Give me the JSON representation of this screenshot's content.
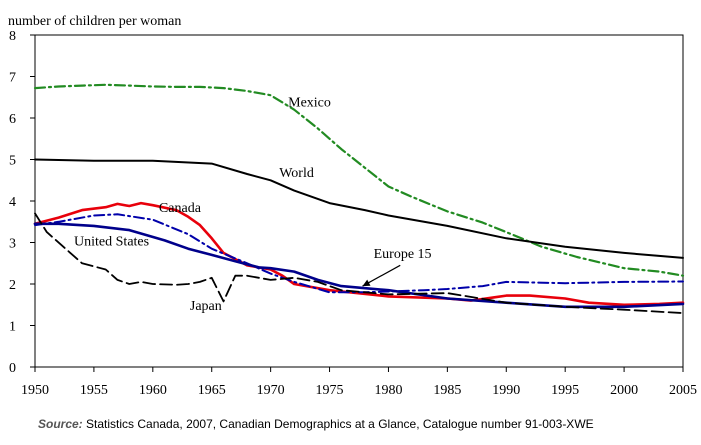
{
  "chart_data": {
    "type": "line",
    "ylabel": "number of children per woman",
    "xlim": [
      1950,
      2005
    ],
    "ylim": [
      0,
      8
    ],
    "x_ticks": [
      1950,
      1955,
      1960,
      1965,
      1970,
      1975,
      1980,
      1985,
      1990,
      1995,
      2000,
      2005
    ],
    "y_ticks": [
      0,
      1,
      2,
      3,
      4,
      5,
      6,
      7,
      8
    ],
    "grid": false,
    "series": [
      {
        "name": "Mexico",
        "color": "#228B22",
        "dash": "dashdot",
        "width": 2.2,
        "points": [
          [
            1950,
            6.72
          ],
          [
            1952,
            6.76
          ],
          [
            1954,
            6.78
          ],
          [
            1956,
            6.8
          ],
          [
            1958,
            6.78
          ],
          [
            1960,
            6.76
          ],
          [
            1962,
            6.75
          ],
          [
            1964,
            6.75
          ],
          [
            1966,
            6.72
          ],
          [
            1968,
            6.65
          ],
          [
            1970,
            6.55
          ],
          [
            1972,
            6.2
          ],
          [
            1974,
            5.75
          ],
          [
            1976,
            5.25
          ],
          [
            1978,
            4.8
          ],
          [
            1980,
            4.35
          ],
          [
            1982,
            4.1
          ],
          [
            1985,
            3.75
          ],
          [
            1988,
            3.48
          ],
          [
            1990,
            3.25
          ],
          [
            1993,
            2.9
          ],
          [
            1996,
            2.65
          ],
          [
            2000,
            2.38
          ],
          [
            2003,
            2.3
          ],
          [
            2005,
            2.2
          ]
        ]
      },
      {
        "name": "World",
        "color": "#000000",
        "dash": "solid",
        "width": 2,
        "points": [
          [
            1950,
            5.0
          ],
          [
            1955,
            4.97
          ],
          [
            1960,
            4.97
          ],
          [
            1965,
            4.9
          ],
          [
            1968,
            4.65
          ],
          [
            1970,
            4.5
          ],
          [
            1972,
            4.25
          ],
          [
            1975,
            3.95
          ],
          [
            1978,
            3.78
          ],
          [
            1980,
            3.65
          ],
          [
            1985,
            3.4
          ],
          [
            1990,
            3.1
          ],
          [
            1995,
            2.9
          ],
          [
            2000,
            2.75
          ],
          [
            2005,
            2.63
          ]
        ]
      },
      {
        "name": "Canada",
        "color": "#e8000b",
        "dash": "solid",
        "width": 2.6,
        "points": [
          [
            1950,
            3.45
          ],
          [
            1952,
            3.6
          ],
          [
            1954,
            3.78
          ],
          [
            1956,
            3.85
          ],
          [
            1957,
            3.93
          ],
          [
            1958,
            3.88
          ],
          [
            1959,
            3.95
          ],
          [
            1960,
            3.9
          ],
          [
            1962,
            3.78
          ],
          [
            1963,
            3.62
          ],
          [
            1964,
            3.42
          ],
          [
            1965,
            3.1
          ],
          [
            1966,
            2.75
          ],
          [
            1968,
            2.45
          ],
          [
            1970,
            2.35
          ],
          [
            1971,
            2.2
          ],
          [
            1972,
            2.0
          ],
          [
            1975,
            1.85
          ],
          [
            1980,
            1.7
          ],
          [
            1985,
            1.65
          ],
          [
            1987,
            1.6
          ],
          [
            1989,
            1.68
          ],
          [
            1990,
            1.72
          ],
          [
            1992,
            1.72
          ],
          [
            1995,
            1.65
          ],
          [
            1997,
            1.55
          ],
          [
            2000,
            1.5
          ],
          [
            2003,
            1.52
          ],
          [
            2005,
            1.55
          ]
        ]
      },
      {
        "name": "United States",
        "color": "#0000aa",
        "dash": "dashdot",
        "width": 2,
        "points": [
          [
            1950,
            3.42
          ],
          [
            1952,
            3.5
          ],
          [
            1955,
            3.65
          ],
          [
            1957,
            3.68
          ],
          [
            1960,
            3.55
          ],
          [
            1963,
            3.2
          ],
          [
            1965,
            2.85
          ],
          [
            1968,
            2.5
          ],
          [
            1970,
            2.25
          ],
          [
            1972,
            2.05
          ],
          [
            1975,
            1.8
          ],
          [
            1978,
            1.8
          ],
          [
            1980,
            1.82
          ],
          [
            1983,
            1.85
          ],
          [
            1985,
            1.88
          ],
          [
            1988,
            1.95
          ],
          [
            1990,
            2.05
          ],
          [
            1995,
            2.02
          ],
          [
            2000,
            2.05
          ],
          [
            2005,
            2.06
          ]
        ]
      },
      {
        "name": "Europe 15",
        "color": "#00008b",
        "dash": "solid",
        "width": 2.6,
        "points": [
          [
            1950,
            3.45
          ],
          [
            1952,
            3.45
          ],
          [
            1955,
            3.4
          ],
          [
            1958,
            3.3
          ],
          [
            1961,
            3.05
          ],
          [
            1963,
            2.85
          ],
          [
            1965,
            2.7
          ],
          [
            1967,
            2.55
          ],
          [
            1969,
            2.4
          ],
          [
            1970,
            2.38
          ],
          [
            1972,
            2.3
          ],
          [
            1974,
            2.1
          ],
          [
            1976,
            1.95
          ],
          [
            1980,
            1.85
          ],
          [
            1985,
            1.65
          ],
          [
            1990,
            1.55
          ],
          [
            1995,
            1.45
          ],
          [
            2000,
            1.45
          ],
          [
            2005,
            1.52
          ]
        ]
      },
      {
        "name": "Japan",
        "color": "#000000",
        "dash": "longdash",
        "width": 1.8,
        "points": [
          [
            1950,
            3.7
          ],
          [
            1951,
            3.25
          ],
          [
            1953,
            2.75
          ],
          [
            1954,
            2.5
          ],
          [
            1956,
            2.35
          ],
          [
            1957,
            2.1
          ],
          [
            1958,
            2.0
          ],
          [
            1959,
            2.05
          ],
          [
            1960,
            2.0
          ],
          [
            1962,
            1.98
          ],
          [
            1963,
            2.0
          ],
          [
            1964,
            2.05
          ],
          [
            1965,
            2.15
          ],
          [
            1966,
            1.58
          ],
          [
            1967,
            2.2
          ],
          [
            1968,
            2.2
          ],
          [
            1970,
            2.1
          ],
          [
            1972,
            2.15
          ],
          [
            1974,
            2.05
          ],
          [
            1976,
            1.85
          ],
          [
            1980,
            1.75
          ],
          [
            1985,
            1.78
          ],
          [
            1990,
            1.55
          ],
          [
            1995,
            1.45
          ],
          [
            2000,
            1.38
          ],
          [
            2005,
            1.3
          ]
        ]
      }
    ],
    "annotations": [
      {
        "text": "Mexico",
        "x": 1973.3,
        "y": 6.4
      },
      {
        "text": "World",
        "x": 1972.2,
        "y": 4.7
      },
      {
        "text": "Canada",
        "x": 1962.3,
        "y": 3.85
      },
      {
        "text": "United States",
        "x": 1956.5,
        "y": 3.05
      },
      {
        "text": "Europe 15",
        "x": 1981.2,
        "y": 2.75
      },
      {
        "text": "Japan",
        "x": 1964.5,
        "y": 1.5
      }
    ],
    "arrow": {
      "from": [
        1981.0,
        2.45
      ],
      "to": [
        1977.8,
        1.95
      ]
    }
  },
  "source": {
    "label": "Source:",
    "text": " Statistics Canada, 2007, Canadian Demographics at a Glance, Catalogue number 91-003-XWE"
  }
}
